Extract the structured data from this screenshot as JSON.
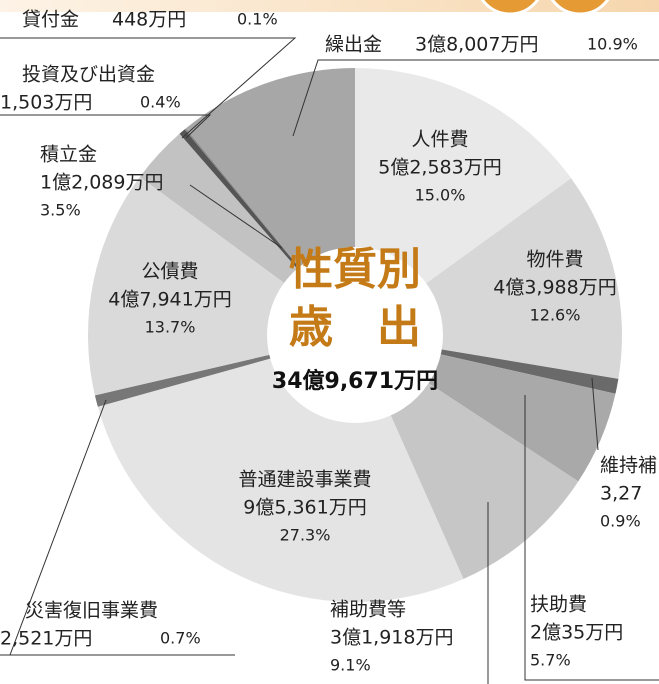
{
  "chart_data": {
    "type": "pie",
    "title": "性質別",
    "subtitle": "歳　出",
    "total": "34億9,671万円",
    "categories": [
      "人件費",
      "物件費",
      "維持補",
      "扶助費",
      "補助費等",
      "普通建設事業費",
      "災害復旧事業費",
      "公債費",
      "積立金",
      "投資及び出資金",
      "貸付金",
      "繰出金"
    ],
    "amount_labels": [
      "5億2,583万円",
      "4億3,988万円",
      "3,27",
      "2億35万円",
      "3億1,918万円",
      "9億5,361万円",
      "2,521万円",
      "4億7,941万円",
      "1億2,089万円",
      "1,503万円",
      "448万円",
      "3億8,007万円"
    ],
    "values": [
      15.0,
      12.6,
      0.9,
      5.7,
      9.1,
      27.3,
      0.7,
      13.7,
      3.5,
      0.4,
      0.1,
      10.9
    ],
    "value_labels": [
      "15.0%",
      "12.6%",
      "0.9%",
      "5.7%",
      "9.1%",
      "27.3%",
      "0.7%",
      "13.7%",
      "3.5%",
      "0.4%",
      "0.1%",
      "10.9%"
    ],
    "colors": [
      "#e9e9e9",
      "#d7d7d7",
      "#6a6a6a",
      "#a9a9a9",
      "#c6c6c6",
      "#e4e4e4",
      "#777777",
      "#dadada",
      "#c2c2c2",
      "#555555",
      "#8a8a8a",
      "#a7a7a7"
    ]
  }
}
